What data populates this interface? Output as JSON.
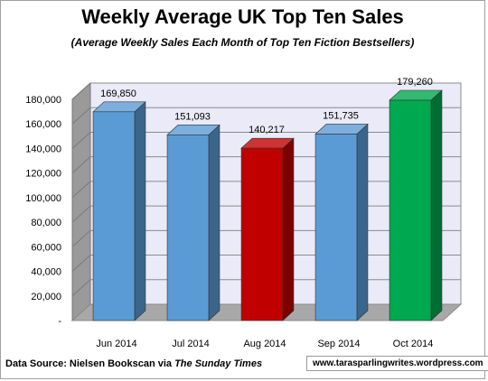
{
  "chart_data": {
    "type": "bar",
    "title": "Weekly Average UK Top Ten Sales",
    "subtitle": "(Average Weekly Sales Each Month of Top Ten Fiction Bestsellers)",
    "categories": [
      "Jun 2014",
      "Jul 2014",
      "Aug 2014",
      "Sep 2014",
      "Oct 2014"
    ],
    "values": [
      169850,
      151093,
      140217,
      151735,
      179260
    ],
    "data_labels": [
      "169,850",
      "151,093",
      "140,217",
      "151,735",
      "179,260"
    ],
    "bar_colors": [
      "#5b9bd5",
      "#5b9bd5",
      "#c00000",
      "#5b9bd5",
      "#00a84f"
    ],
    "ylim": [
      0,
      180000
    ],
    "yticks": [
      0,
      20000,
      40000,
      60000,
      80000,
      100000,
      120000,
      140000,
      160000,
      180000
    ],
    "ytick_labels": [
      "-",
      "20,000",
      "40,000",
      "60,000",
      "80,000",
      "100,000",
      "120,000",
      "140,000",
      "160,000",
      "180,000"
    ],
    "grid": true,
    "style": "3d-column"
  },
  "footer": {
    "source_prefix": "Data Source: Nielsen Bookscan via ",
    "source_publication": "The Sunday Times",
    "url": "www.tarasparlingwrites.wordpress.com"
  }
}
